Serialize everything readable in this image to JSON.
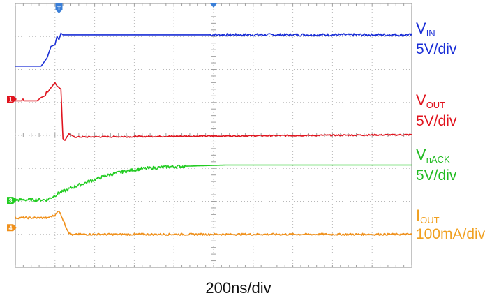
{
  "chart_data": {
    "type": "line",
    "xlabel": "200ns/div",
    "x_range": [
      -1.1,
      8.9
    ],
    "y_range": [
      0,
      8
    ],
    "grid": true,
    "trigger_marker": {
      "label": "T",
      "x": 0
    },
    "channels": [
      {
        "name": "V",
        "sub": "IN",
        "scale": "5V/div",
        "color": "#1a2ed6",
        "marker": "",
        "marker_level": 6.15,
        "points": [
          [
            -1.1,
            6.1
          ],
          [
            -0.45,
            6.1
          ],
          [
            -0.3,
            6.35
          ],
          [
            -0.2,
            6.7
          ],
          [
            -0.1,
            6.75
          ],
          [
            -0.05,
            7.0
          ],
          [
            0.0,
            6.9
          ],
          [
            0.05,
            7.1
          ],
          [
            0.1,
            7.05
          ],
          [
            8.9,
            7.05
          ]
        ],
        "noise_from": 3.8,
        "noise_amp": 0.04
      },
      {
        "name": "V",
        "sub": "OUT",
        "scale": "5V/div",
        "color": "#e0141e",
        "marker": "1",
        "marker_level": 5.1,
        "points": [
          [
            -1.1,
            5.05
          ],
          [
            -0.55,
            5.05
          ],
          [
            -0.45,
            5.15
          ],
          [
            -0.35,
            5.2
          ],
          [
            -0.2,
            5.45
          ],
          [
            -0.1,
            5.6
          ],
          [
            -0.05,
            5.5
          ],
          [
            0.05,
            5.4
          ],
          [
            0.1,
            3.9
          ],
          [
            0.15,
            3.85
          ],
          [
            0.25,
            4.05
          ],
          [
            0.4,
            3.95
          ],
          [
            8.9,
            4.02
          ]
        ],
        "noise_from": 0.4,
        "noise_amp": 0.02,
        "glitches": [
          [
            -0.9,
            0.05
          ],
          [
            -0.3,
            0.06
          ]
        ]
      },
      {
        "name": "V",
        "sub": "nACK",
        "scale": "5V/div",
        "color": "#22cc22",
        "marker": "3",
        "marker_level": 2.03,
        "points": [
          [
            -1.1,
            2.05
          ],
          [
            -0.3,
            2.05
          ],
          [
            0.0,
            2.25
          ],
          [
            0.4,
            2.45
          ],
          [
            0.8,
            2.62
          ],
          [
            1.2,
            2.78
          ],
          [
            1.6,
            2.9
          ],
          [
            2.0,
            2.98
          ],
          [
            2.8,
            3.05
          ],
          [
            3.6,
            3.08
          ],
          [
            4.2,
            3.1
          ],
          [
            8.9,
            3.1
          ]
        ],
        "noise_from": -1.1,
        "noise_amp": 0.05,
        "noise_until": 3.2
      },
      {
        "name": "I",
        "sub": "OUT",
        "scale": "100mA/div",
        "color": "#f0901a",
        "marker": "4",
        "marker_level": 1.2,
        "points": [
          [
            -1.1,
            1.5
          ],
          [
            -0.3,
            1.5
          ],
          [
            -0.1,
            1.58
          ],
          [
            0.0,
            1.72
          ],
          [
            0.05,
            1.6
          ],
          [
            0.15,
            1.3
          ],
          [
            0.25,
            1.05
          ],
          [
            0.35,
            0.98
          ],
          [
            0.5,
            1.0
          ],
          [
            8.9,
            1.0
          ]
        ],
        "noise_from": -1.1,
        "noise_amp": 0.03
      }
    ]
  }
}
